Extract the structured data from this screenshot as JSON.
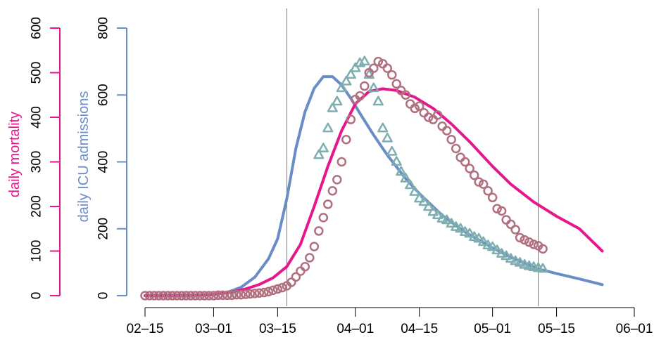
{
  "chart_data": {
    "type": "line",
    "title": "",
    "xlabel": "",
    "x_ticks": [
      "02-15",
      "03-01",
      "03-15",
      "04-01",
      "04-15",
      "05-01",
      "05-15",
      "06-01"
    ],
    "xlim": [
      "02-15",
      "06-01"
    ],
    "vlines": [
      "03-17",
      "05-11"
    ],
    "axes": {
      "left_outer": {
        "label": "daily mortality",
        "color": "#E6168C",
        "range": [
          0,
          600
        ],
        "ticks": [
          0,
          100,
          200,
          300,
          400,
          500,
          600
        ]
      },
      "left_inner": {
        "label_prefix": "daily",
        "label_highlight": "ICU admissions",
        "color": "#6A8CC7",
        "range": [
          0,
          800
        ],
        "ticks": [
          0,
          200,
          400,
          600,
          800
        ]
      }
    },
    "series": [
      {
        "kind": "line",
        "axis": "left_inner",
        "color": "#6A8CC7",
        "x": [
          "02-15",
          "02-20",
          "02-25",
          "03-01",
          "03-04",
          "03-07",
          "03-10",
          "03-13",
          "03-15",
          "03-17",
          "03-19",
          "03-21",
          "03-23",
          "03-25",
          "03-27",
          "03-29",
          "03-31",
          "04-02",
          "04-05",
          "04-08",
          "04-12",
          "04-15",
          "04-20",
          "04-25",
          "05-01",
          "05-05",
          "05-11",
          "05-15",
          "05-20",
          "05-25"
        ],
        "y": [
          0,
          0,
          0,
          3,
          10,
          25,
          55,
          110,
          170,
          290,
          440,
          550,
          620,
          655,
          655,
          630,
          590,
          545,
          480,
          420,
          350,
          305,
          240,
          190,
          143,
          115,
          80,
          66,
          50,
          33
        ]
      },
      {
        "kind": "line",
        "axis": "left_outer",
        "color": "#E6168C",
        "x": [
          "02-15",
          "02-25",
          "03-01",
          "03-05",
          "03-08",
          "03-11",
          "03-14",
          "03-17",
          "03-20",
          "03-23",
          "03-26",
          "03-29",
          "04-01",
          "04-04",
          "04-07",
          "04-10",
          "04-14",
          "04-18",
          "04-22",
          "04-26",
          "05-01",
          "05-05",
          "05-10",
          "05-15",
          "05-20",
          "05-25"
        ],
        "y": [
          0,
          1,
          3,
          8,
          15,
          25,
          40,
          65,
          115,
          200,
          290,
          370,
          430,
          458,
          464,
          460,
          445,
          420,
          385,
          345,
          290,
          250,
          210,
          178,
          150,
          100
        ]
      },
      {
        "kind": "triangles",
        "axis": "left_inner",
        "color": "#7EAEB0",
        "x": [
          "03-24",
          "03-25",
          "03-26",
          "03-27",
          "03-28",
          "03-29",
          "03-30",
          "03-31",
          "04-01",
          "04-02",
          "04-03",
          "04-04",
          "04-05",
          "04-06",
          "04-07",
          "04-08",
          "04-09",
          "04-10",
          "04-11",
          "04-12",
          "04-13",
          "04-14",
          "04-15",
          "04-16",
          "04-17",
          "04-18",
          "04-19",
          "04-20",
          "04-21",
          "04-22",
          "04-23",
          "04-24",
          "04-25",
          "04-26",
          "04-27",
          "04-28",
          "04-29",
          "04-30",
          "05-01",
          "05-02",
          "05-03",
          "05-04",
          "05-05",
          "05-06",
          "05-07",
          "05-08",
          "05-09",
          "05-10",
          "05-11",
          "05-12"
        ],
        "y": [
          420,
          440,
          500,
          560,
          580,
          620,
          640,
          660,
          680,
          695,
          700,
          660,
          620,
          580,
          500,
          470,
          430,
          400,
          370,
          350,
          330,
          310,
          290,
          280,
          265,
          250,
          240,
          230,
          225,
          215,
          205,
          200,
          190,
          185,
          175,
          170,
          160,
          150,
          145,
          135,
          125,
          118,
          110,
          103,
          98,
          92,
          88,
          85,
          82,
          80
        ]
      },
      {
        "kind": "circles",
        "axis": "left_outer",
        "color": "#B0707F",
        "x": [
          "02-15",
          "02-16",
          "02-17",
          "02-18",
          "02-19",
          "02-20",
          "02-21",
          "02-22",
          "02-23",
          "02-24",
          "02-25",
          "02-26",
          "02-27",
          "02-28",
          "02-29",
          "03-01",
          "03-02",
          "03-03",
          "03-04",
          "03-05",
          "03-06",
          "03-07",
          "03-08",
          "03-09",
          "03-10",
          "03-11",
          "03-12",
          "03-13",
          "03-14",
          "03-15",
          "03-16",
          "03-17",
          "03-18",
          "03-19",
          "03-20",
          "03-21",
          "03-22",
          "03-23",
          "03-24",
          "03-25",
          "03-26",
          "03-27",
          "03-28",
          "03-29",
          "03-30",
          "03-31",
          "04-01",
          "04-02",
          "04-03",
          "04-04",
          "04-05",
          "04-06",
          "04-07",
          "04-08",
          "04-09",
          "04-10",
          "04-11",
          "04-12",
          "04-13",
          "04-14",
          "04-15",
          "04-16",
          "04-17",
          "04-18",
          "04-19",
          "04-20",
          "04-21",
          "04-22",
          "04-23",
          "04-24",
          "04-25",
          "04-26",
          "04-27",
          "04-28",
          "04-29",
          "04-30",
          "05-01",
          "05-02",
          "05-03",
          "05-04",
          "05-05",
          "05-06",
          "05-07",
          "05-08",
          "05-09",
          "05-10",
          "05-11",
          "05-12"
        ],
        "y": [
          0,
          0,
          0,
          0,
          0,
          0,
          0,
          0,
          0,
          0,
          0,
          0,
          0,
          0,
          0,
          0,
          1,
          1,
          1,
          1,
          2,
          2,
          3,
          4,
          5,
          6,
          7,
          9,
          12,
          15,
          18,
          22,
          30,
          42,
          55,
          65,
          85,
          110,
          145,
          175,
          205,
          235,
          260,
          300,
          350,
          395,
          440,
          448,
          470,
          500,
          510,
          525,
          520,
          510,
          495,
          475,
          460,
          450,
          430,
          420,
          425,
          410,
          400,
          395,
          405,
          380,
          370,
          350,
          330,
          310,
          300,
          285,
          270,
          255,
          250,
          235,
          220,
          195,
          190,
          170,
          160,
          148,
          130,
          125,
          120,
          115,
          112,
          105
        ]
      }
    ]
  }
}
